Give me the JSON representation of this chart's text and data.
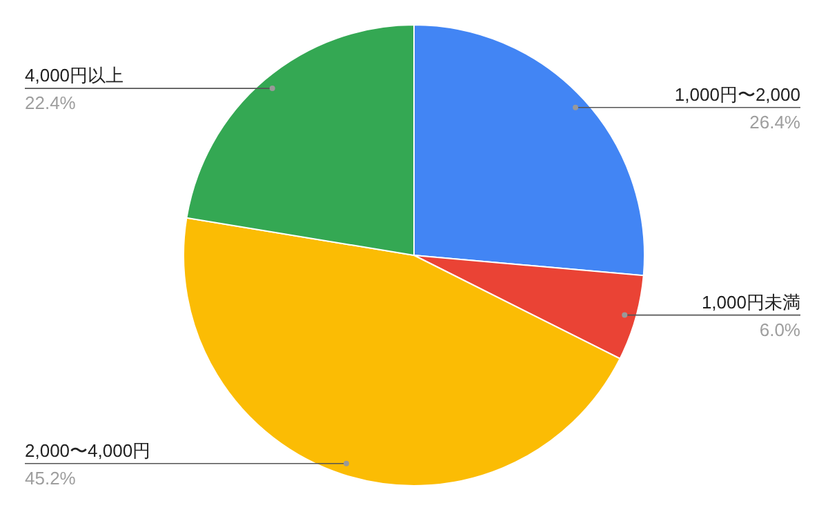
{
  "chart_data": {
    "type": "pie",
    "categories": [
      "1,000円〜2,000",
      "1,000円未満",
      "2,000〜4,000円",
      "4,000円以上"
    ],
    "values": [
      26.4,
      6.0,
      45.2,
      22.4
    ],
    "value_labels": [
      "26.4%",
      "6.0%",
      "45.2%",
      "22.4%"
    ],
    "colors": [
      "#4285f4",
      "#ea4335",
      "#fbbc04",
      "#34a853"
    ]
  }
}
